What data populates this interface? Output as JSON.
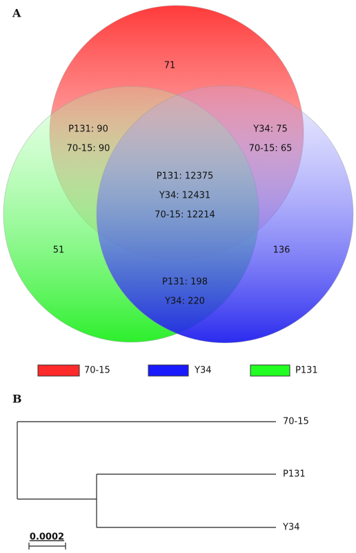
{
  "panel_a": {
    "label": "A",
    "regions": [
      {
        "lines": [
          "71"
        ]
      },
      {
        "lines": [
          "51"
        ]
      },
      {
        "lines": [
          "136"
        ]
      },
      {
        "lines": [
          "P131: 90",
          "70-15: 90"
        ]
      },
      {
        "lines": [
          "Y34: 75",
          "70-15: 65"
        ]
      },
      {
        "lines": [
          "P131: 198",
          "Y34: 220"
        ]
      },
      {
        "lines": [
          "P131: 12375",
          "Y34: 12431",
          "70-15: 12214"
        ]
      }
    ],
    "legend": [
      "70-15",
      "Y34",
      "P131"
    ]
  },
  "panel_b": {
    "label": "B",
    "leaves": [
      "70-15",
      "P131",
      "Y34"
    ],
    "scale": "0.0002"
  }
}
